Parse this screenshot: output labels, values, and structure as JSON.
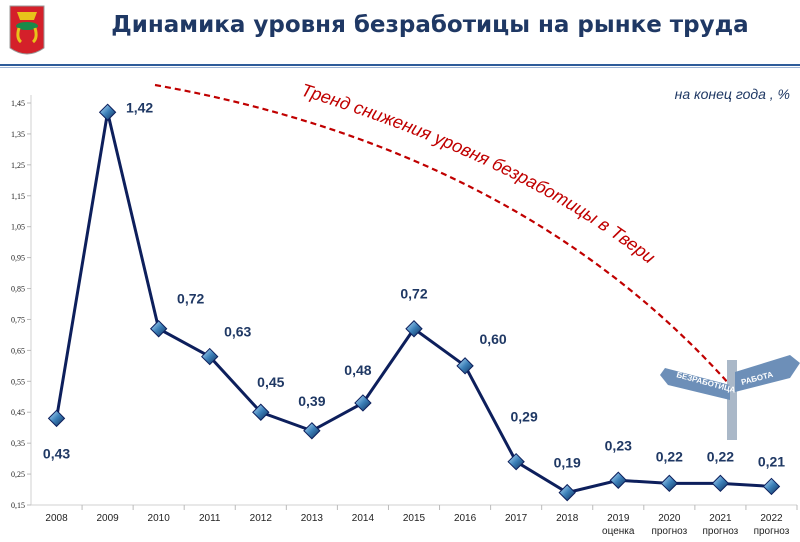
{
  "header": {
    "title": "Динамика уровня безработицы на рынке труда",
    "subtitle": "на конец года , %",
    "emblem": "Tver coat of arms"
  },
  "annotation": {
    "trend_text": "Тренд снижения уровня безработицы в  Твери",
    "sign_left": "БЕЗРАБОТИЦА",
    "sign_right": "РАБОТА"
  },
  "chart_data": {
    "type": "line",
    "title": "Динамика уровня безработицы на рынке труда",
    "categories": [
      "2008",
      "2009",
      "2010",
      "2011",
      "2012",
      "2013",
      "2014",
      "2015",
      "2016",
      "2017",
      "2018",
      "2019",
      "2020",
      "2021",
      "2022"
    ],
    "category_notes": [
      "",
      "",
      "",
      "",
      "",
      "",
      "",
      "",
      "",
      "",
      "",
      "оценка",
      "прогноз",
      "прогноз",
      "прогноз"
    ],
    "values": [
      0.43,
      1.42,
      0.72,
      0.63,
      0.45,
      0.39,
      0.48,
      0.72,
      0.6,
      0.29,
      0.19,
      0.23,
      0.22,
      0.22,
      0.21
    ],
    "labels": [
      "0,43",
      "1,42",
      "0,72",
      "0,63",
      "0,45",
      "0,39",
      "0,48",
      "0,72",
      "0,60",
      "0,29",
      "0,19",
      "0,23",
      "0,22",
      "0,22",
      "0,21"
    ],
    "yticks": [
      "0,15",
      "0,25",
      "0,35",
      "0,45",
      "0,55",
      "0,65",
      "0,75",
      "0,85",
      "0,95",
      "1,05",
      "1,15",
      "1,25",
      "1,35",
      "1,45"
    ],
    "ylim": [
      0.15,
      1.45
    ],
    "line_color": "#0d1f5c",
    "trend_color": "#c00000"
  }
}
